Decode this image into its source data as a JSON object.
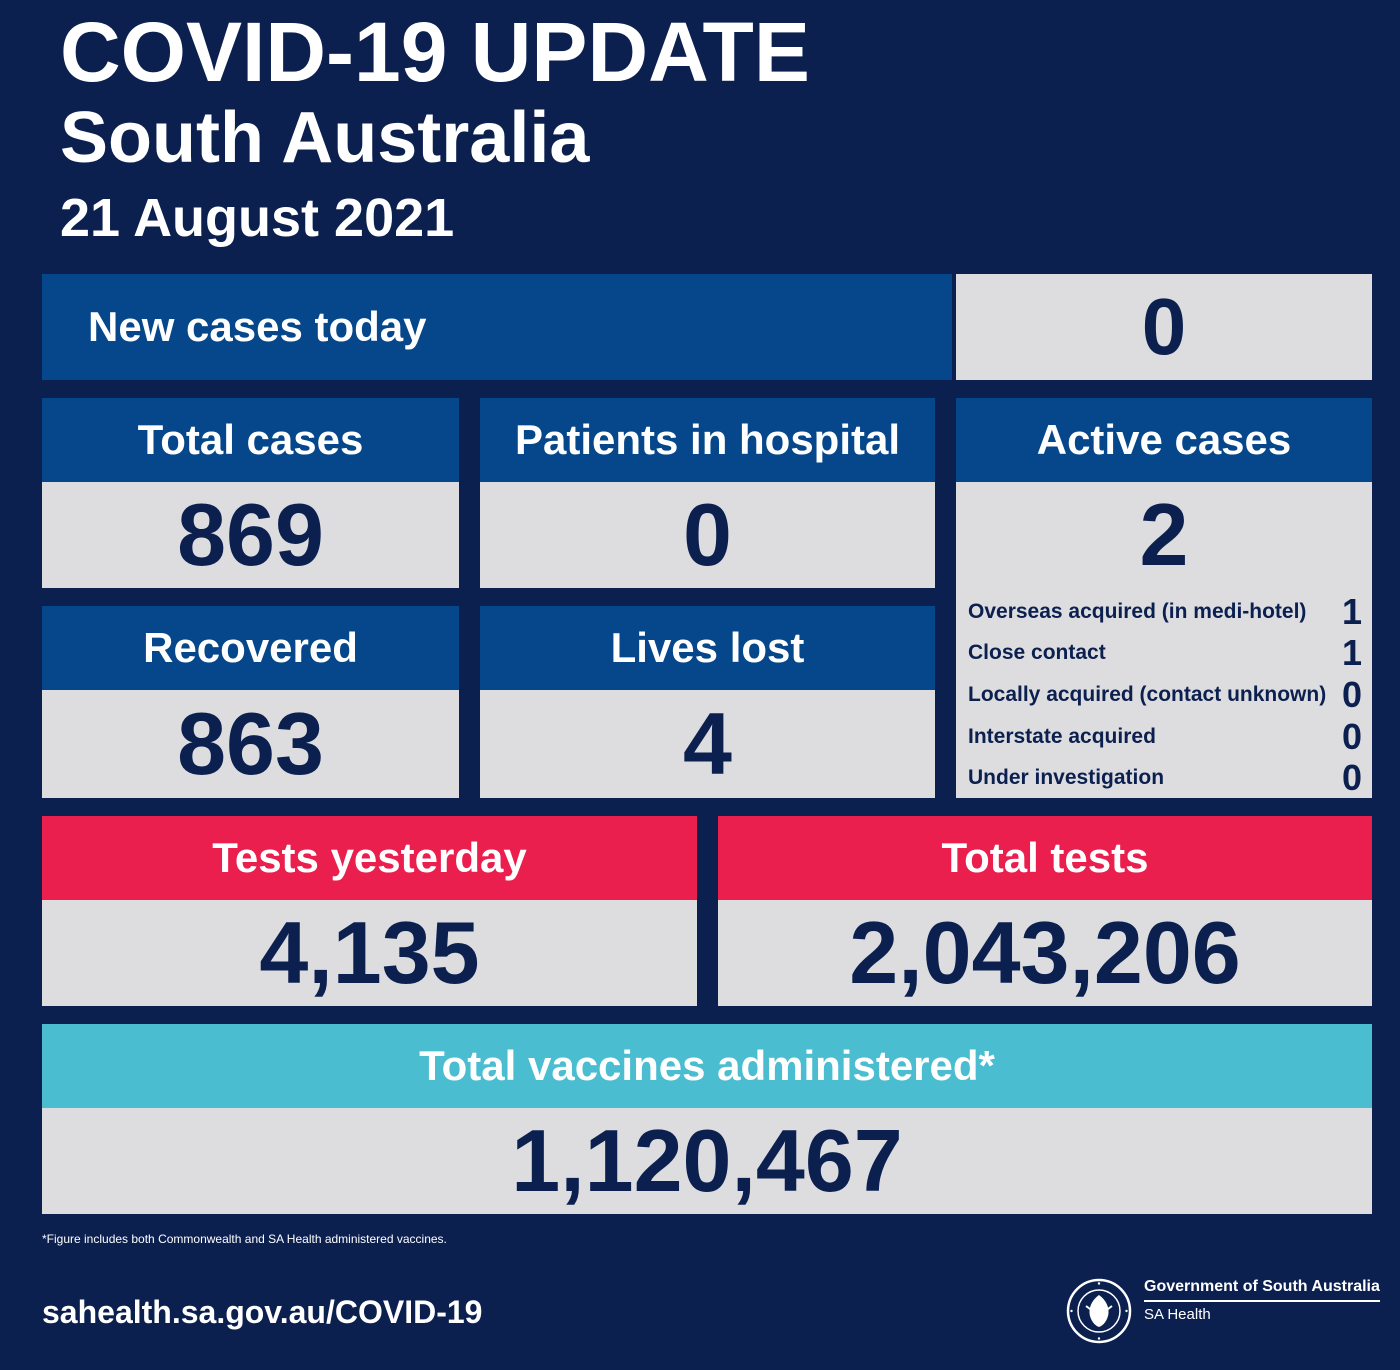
{
  "header": {
    "title": "COVID-19 UPDATE",
    "subtitle": "South Australia",
    "date": "21 August 2021"
  },
  "stats": {
    "new_cases": {
      "label": "New cases today",
      "value": "0"
    },
    "total_cases": {
      "label": "Total cases",
      "value": "869"
    },
    "hospital": {
      "label": "Patients in hospital",
      "value": "0"
    },
    "active": {
      "label": "Active cases",
      "value": "2",
      "breakdown": [
        {
          "label": "Overseas acquired (in medi-hotel)",
          "value": "1"
        },
        {
          "label": "Close contact",
          "value": "1"
        },
        {
          "label": "Locally acquired (contact unknown)",
          "value": "0"
        },
        {
          "label": "Interstate acquired",
          "value": "0"
        },
        {
          "label": "Under investigation",
          "value": "0"
        }
      ]
    },
    "recovered": {
      "label": "Recovered",
      "value": "863"
    },
    "lives_lost": {
      "label": "Lives lost",
      "value": "4"
    },
    "tests_yesterday": {
      "label": "Tests yesterday",
      "value": "4,135"
    },
    "total_tests": {
      "label": "Total tests",
      "value": "2,043,206"
    },
    "vaccines": {
      "label": "Total vaccines administered*",
      "value": "1,120,467"
    }
  },
  "footer": {
    "footnote": "*Figure includes both Commonwealth and SA Health administered vaccines.",
    "url": "sahealth.sa.gov.au/COVID-19",
    "org": "Government of South Australia",
    "dept": "SA Health",
    "seal_text": "SOUTH AUSTRALIA"
  },
  "colors": {
    "background": "#0c2050",
    "header_blue": "#05478a",
    "header_red": "#eb1f4e",
    "header_cyan": "#4bbdd0",
    "value_bg": "#dddddf"
  },
  "icons": {
    "logo": "sa-government-seal-icon"
  }
}
